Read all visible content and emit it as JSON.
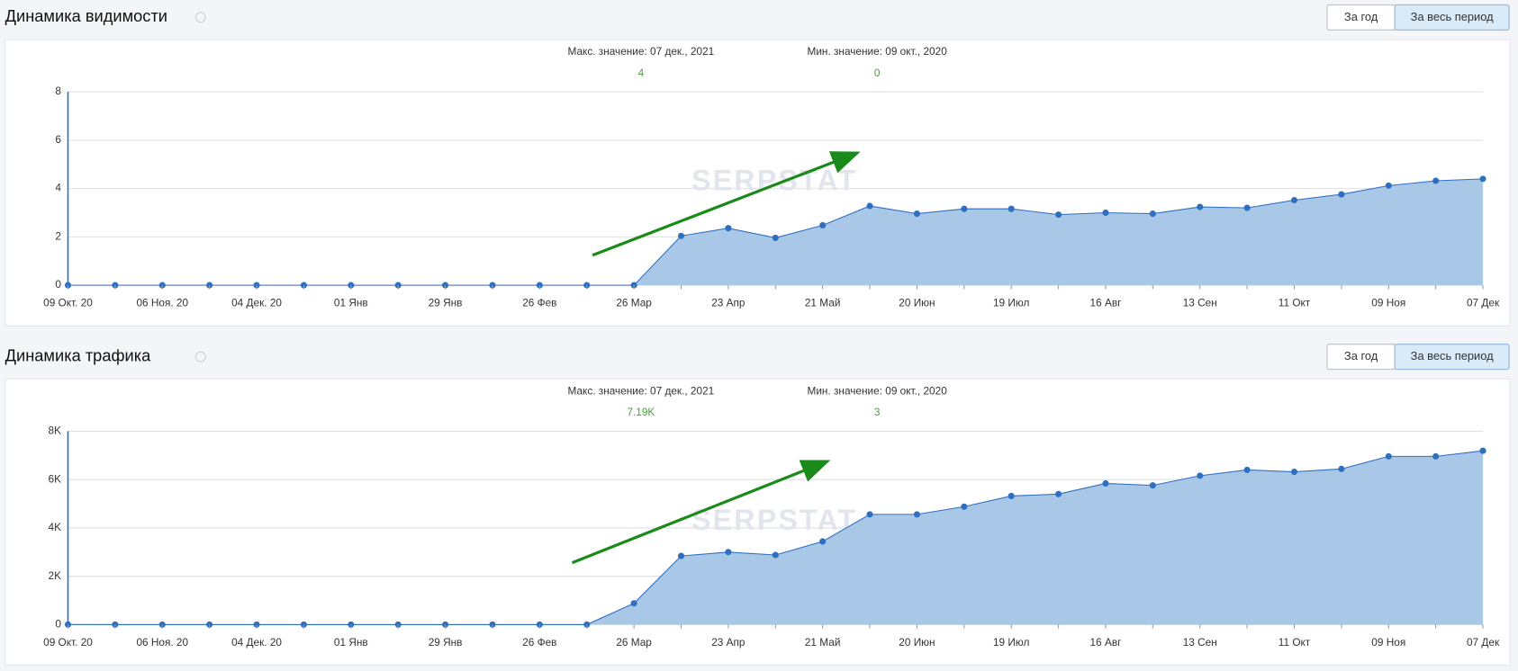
{
  "chart_data": [
    {
      "type": "area",
      "title": "Динамика видимости",
      "buttons": [
        "За год",
        "За весь период"
      ],
      "max_label": "Макс. значение: 07 дек., 2021",
      "max_value": "4",
      "min_label": "Мин. значение: 09 окт., 2020",
      "min_value": "0",
      "watermark": "SERPSTAT",
      "categories": [
        "09 Окт. 20",
        null,
        "06 Ноя. 20",
        null,
        "04 Дек. 20",
        null,
        "01 Янв",
        null,
        "29 Янв",
        null,
        "26 Фев",
        null,
        "26 Мар",
        null,
        "23 Апр",
        null,
        "21 Май",
        null,
        "20 Июн",
        null,
        "19 Июл",
        null,
        "16 Авг",
        null,
        "13 Сен",
        null,
        "11 Окт",
        null,
        "09 Ноя",
        null,
        "07 Дек"
      ],
      "series": [
        {
          "color": "#2f6fc0",
          "values": [
            0,
            0,
            0,
            0,
            0,
            0,
            0,
            0,
            0,
            0,
            0,
            0,
            0,
            2.04,
            2.36,
            1.96,
            2.48,
            3.28,
            2.96,
            3.16,
            3.16,
            2.92,
            3.0,
            2.96,
            3.24,
            3.2,
            3.52,
            3.76,
            4.12,
            4.32,
            4.4
          ]
        }
      ],
      "ylim": [
        0,
        8
      ],
      "yticks": [
        0,
        2,
        4,
        6,
        8
      ],
      "grid": true
    },
    {
      "type": "area",
      "title": "Динамика трафика",
      "buttons": [
        "За год",
        "За весь период"
      ],
      "max_label": "Макс. значение: 07 дек., 2021",
      "max_value": "7.19K",
      "min_label": "Мин. значение: 09 окт., 2020",
      "min_value": "3",
      "watermark": "SERPSTAT",
      "categories": [
        "09 Окт. 20",
        null,
        "06 Ноя. 20",
        null,
        "04 Дек. 20",
        null,
        "01 Янв",
        null,
        "29 Янв",
        null,
        "26 Фев",
        null,
        "26 Мар",
        null,
        "23 Апр",
        null,
        "21 Май",
        null,
        "20 Июн",
        null,
        "19 Июл",
        null,
        "16 Авг",
        null,
        "13 Сен",
        null,
        "11 Окт",
        null,
        "09 Ноя",
        null,
        "07 Дек"
      ],
      "series": [
        {
          "color": "#2f6fc0",
          "values": [
            3,
            0,
            0,
            0,
            0,
            0,
            0,
            0,
            0,
            0,
            0,
            0,
            880,
            2840,
            3000,
            2880,
            3440,
            4560,
            4560,
            4880,
            5320,
            5400,
            5840,
            5760,
            6160,
            6400,
            6320,
            6440,
            6960,
            6960,
            7190
          ]
        }
      ],
      "ylim": [
        0,
        8000
      ],
      "yticks": [
        0,
        {
          "value": 2000,
          "label": "2K"
        },
        {
          "value": 4000,
          "label": "4K"
        },
        {
          "value": 6000,
          "label": "6K"
        },
        {
          "value": 8000,
          "label": "8K"
        }
      ],
      "grid": true
    }
  ]
}
